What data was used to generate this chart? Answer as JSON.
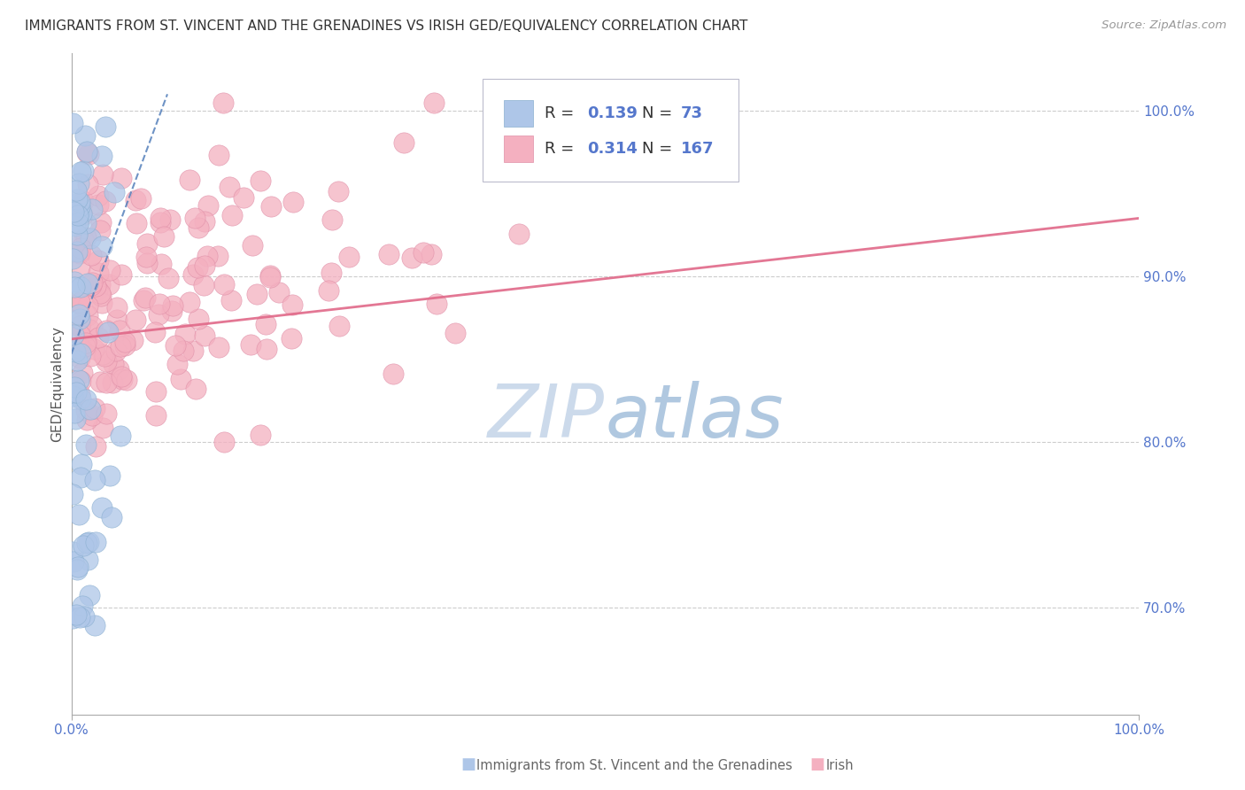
{
  "title": "IMMIGRANTS FROM ST. VINCENT AND THE GRENADINES VS IRISH GED/EQUIVALENCY CORRELATION CHART",
  "source": "Source: ZipAtlas.com",
  "ylabel": "GED/Equivalency",
  "legend_blue_R": "0.139",
  "legend_blue_N": "73",
  "legend_pink_R": "0.314",
  "legend_pink_N": "167",
  "blue_color": "#aec6e8",
  "pink_color": "#f4b0c0",
  "blue_edge_color": "#8aafd0",
  "pink_edge_color": "#e090a8",
  "blue_line_color": "#5580bb",
  "pink_line_color": "#e06888",
  "watermark_color": "#ccdaeb",
  "grid_color": "#cccccc",
  "tick_color": "#5577cc",
  "title_color": "#333333",
  "source_color": "#999999",
  "ylim_min": 0.635,
  "ylim_max": 1.035,
  "xlim_min": 0.0,
  "xlim_max": 1.0,
  "yticks": [
    0.7,
    0.8,
    0.9,
    1.0
  ],
  "ytick_labels": [
    "70.0%",
    "80.0%",
    "90.0%",
    "100.0%"
  ],
  "blue_line_x0": 0.0,
  "blue_line_x1": 0.09,
  "blue_line_y0": 0.853,
  "blue_line_y1": 1.01,
  "pink_line_x0": 0.0,
  "pink_line_x1": 1.0,
  "pink_line_y0": 0.862,
  "pink_line_y1": 0.935
}
